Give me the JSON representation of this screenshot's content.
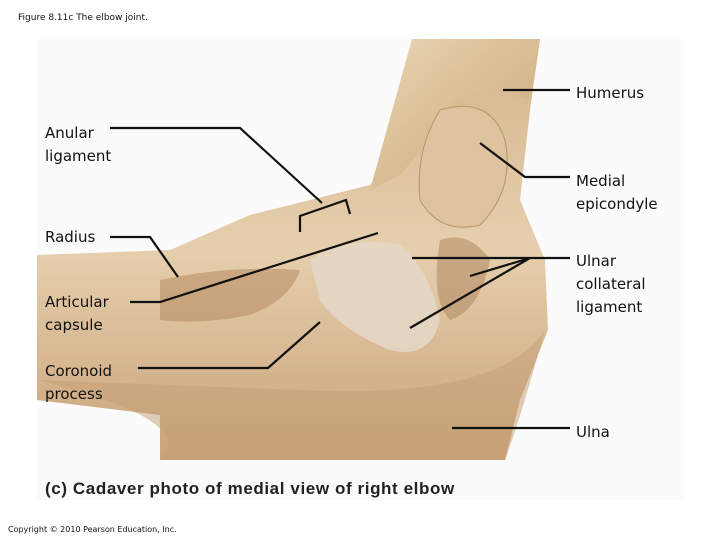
{
  "header": {
    "title": "Figure 8.11c  The elbow joint."
  },
  "labels": {
    "left": [
      {
        "lines": [
          "Anular",
          "ligament"
        ]
      },
      {
        "lines": [
          "Radius"
        ]
      },
      {
        "lines": [
          "Articular",
          "capsule"
        ]
      },
      {
        "lines": [
          "Coronoid",
          "process"
        ]
      }
    ],
    "right": [
      {
        "lines": [
          "Humerus"
        ]
      },
      {
        "lines": [
          "Medial",
          "epicondyle"
        ]
      },
      {
        "lines": [
          "Ulnar",
          "collateral",
          "ligament"
        ]
      },
      {
        "lines": [
          "Ulna"
        ]
      }
    ]
  },
  "caption": "(c) Cadaver photo of medial view of right elbow",
  "footer": "Copyright © 2010 Pearson Education, Inc."
}
